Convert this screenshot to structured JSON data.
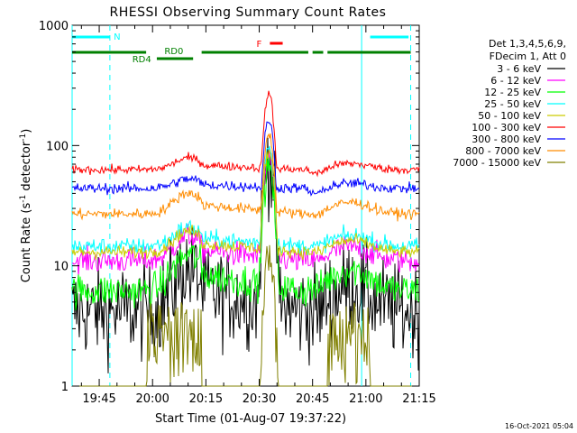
{
  "chart_data": {
    "type": "line",
    "title": "RHESSI Observing Summary Count Rates",
    "xlabel": "Start Time (01-Aug-07 19:37:22)",
    "ylabel": "Count Rate (s⁻¹ detector⁻¹)",
    "ylabel_parts": [
      "Count Rate (s",
      "-1",
      " detector",
      "-1",
      ")"
    ],
    "y_scale": "log",
    "ylim": [
      1,
      1000
    ],
    "y_ticks": [
      {
        "v": 1,
        "label": "1"
      },
      {
        "v": 10,
        "label": "10"
      },
      {
        "v": 100,
        "label": "100"
      },
      {
        "v": 1000,
        "label": "1000"
      }
    ],
    "xlim": [
      19.623,
      21.25
    ],
    "x_ticks": [
      {
        "v": 19.75,
        "label": "19:45"
      },
      {
        "v": 20.0,
        "label": "20:00"
      },
      {
        "v": 20.25,
        "label": "20:15"
      },
      {
        "v": 20.5,
        "label": "20:30"
      },
      {
        "v": 20.75,
        "label": "20:45"
      },
      {
        "v": 21.0,
        "label": "21:00"
      },
      {
        "v": 21.25,
        "label": "21:15"
      }
    ],
    "legend_title": [
      "Det 1,3,4,5,6,9,",
      "FDecim 1, Att 0"
    ],
    "legend_position": "right",
    "series": [
      {
        "name": "3 - 6 keV",
        "color": "#000000",
        "base": 4.2,
        "flare": 75,
        "orbit": 2.2,
        "noise": 0.45,
        "post": 1.0
      },
      {
        "name": "6 - 12 keV",
        "color": "#ff00ff",
        "base": 11,
        "flare": 80,
        "orbit": 1.6,
        "noise": 0.12,
        "post": 1.0
      },
      {
        "name": "12 - 25 keV",
        "color": "#00ff00",
        "base": 6.2,
        "flare": 65,
        "orbit": 2.0,
        "noise": 0.16,
        "post": 1.05
      },
      {
        "name": "25 - 50 keV",
        "color": "#00ffff",
        "base": 14.5,
        "flare": 100,
        "orbit": 1.45,
        "noise": 0.08,
        "post": 1.0
      },
      {
        "name": "50 - 100 keV",
        "color": "#cccc00",
        "base": 13,
        "flare": 90,
        "orbit": 1.5,
        "noise": 0.06,
        "post": 1.0
      },
      {
        "name": "100 - 300 keV",
        "color": "#ff0000",
        "base": 63,
        "flare": 270,
        "orbit": 1.25,
        "noise": 0.04,
        "post": 0.95
      },
      {
        "name": "300 - 800 keV",
        "color": "#0000ff",
        "base": 44,
        "flare": 165,
        "orbit": 1.2,
        "noise": 0.05,
        "post": 0.92
      },
      {
        "name": "800 - 7000 keV",
        "color": "#ff8c00",
        "base": 27,
        "flare": 125,
        "orbit": 1.5,
        "noise": 0.05,
        "post": 1.0
      },
      {
        "name": "7000 - 15000 keV",
        "color": "#808000",
        "base": 0.8,
        "flare": 11,
        "orbit": 1.0,
        "noise": 0.3,
        "post": 1.0
      }
    ],
    "flag_bars": [
      {
        "label": "N",
        "color": "#00ffff",
        "segments": [
          [
            19.623,
            19.8
          ],
          [
            21.02,
            21.2
          ]
        ]
      },
      {
        "label": "F",
        "color": "#ff0000",
        "segments": [
          [
            20.55,
            20.61
          ]
        ]
      },
      {
        "label": "RD0",
        "color": "#008000",
        "segments": [
          [
            19.623,
            19.97
          ],
          [
            20.23,
            20.73
          ],
          [
            20.75,
            20.8
          ],
          [
            20.82,
            21.21
          ]
        ]
      },
      {
        "label": "RD4",
        "color": "#008000",
        "segments": [
          [
            20.02,
            20.19
          ]
        ]
      }
    ],
    "boundaries_solid": [
      19.623,
      20.98
    ],
    "boundaries_dashed": [
      19.8,
      21.21
    ],
    "timestamp": "16-Oct-2021 05:04"
  }
}
